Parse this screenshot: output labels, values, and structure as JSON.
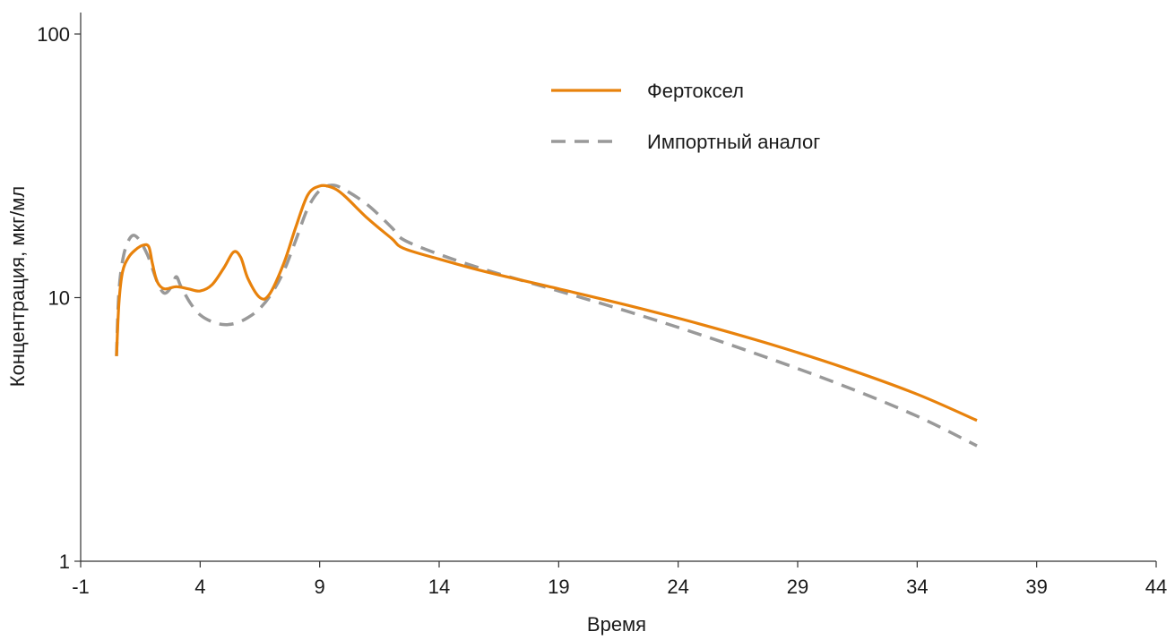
{
  "chart_data": {
    "type": "line",
    "title": "",
    "xlabel": "Время",
    "ylabel": "Концентрация, мкг/мл",
    "xlim": [
      -1,
      44
    ],
    "ylim": [
      1,
      100
    ],
    "yscale": "log",
    "xticks": [
      -1,
      4,
      9,
      14,
      19,
      24,
      29,
      34,
      39,
      44
    ],
    "yticks": [
      1,
      10,
      100
    ],
    "xtick_labels": [
      "-1",
      "4",
      "9",
      "14",
      "19",
      "24",
      "29",
      "34",
      "39",
      "44"
    ],
    "ytick_labels": [
      "1",
      "10",
      "100"
    ],
    "grid": false,
    "legend_position": "top-right",
    "series": [
      {
        "name": "Фертоксел",
        "color": "#e8820c",
        "style": "solid",
        "points": [
          [
            0.5,
            6.0
          ],
          [
            0.6,
            9.5
          ],
          [
            0.75,
            12.5
          ],
          [
            1.0,
            14.2
          ],
          [
            1.3,
            15.2
          ],
          [
            1.6,
            15.8
          ],
          [
            1.85,
            15.6
          ],
          [
            2.0,
            13.5
          ],
          [
            2.2,
            11.5
          ],
          [
            2.5,
            10.8
          ],
          [
            3.0,
            11.0
          ],
          [
            3.5,
            10.8
          ],
          [
            4.0,
            10.6
          ],
          [
            4.5,
            11.2
          ],
          [
            5.0,
            13.0
          ],
          [
            5.4,
            14.9
          ],
          [
            5.7,
            14.2
          ],
          [
            6.0,
            11.8
          ],
          [
            6.5,
            10.0
          ],
          [
            6.9,
            10.3
          ],
          [
            7.5,
            13.5
          ],
          [
            8.0,
            18.5
          ],
          [
            8.5,
            24.5
          ],
          [
            9.0,
            26.5
          ],
          [
            9.5,
            26.2
          ],
          [
            10.0,
            24.5
          ],
          [
            11.0,
            20.0
          ],
          [
            12.0,
            16.8
          ],
          [
            12.5,
            15.4
          ],
          [
            14.0,
            14.0
          ],
          [
            16.0,
            12.5
          ],
          [
            19.0,
            10.8
          ],
          [
            22.0,
            9.3
          ],
          [
            25.0,
            7.9
          ],
          [
            28.0,
            6.6
          ],
          [
            31.0,
            5.4
          ],
          [
            34.0,
            4.3
          ],
          [
            36.5,
            3.42
          ]
        ]
      },
      {
        "name": "Импортный аналог",
        "color": "#999999",
        "style": "dashed",
        "points": [
          [
            0.5,
            6.0
          ],
          [
            0.6,
            10.5
          ],
          [
            0.8,
            14.5
          ],
          [
            1.1,
            17.0
          ],
          [
            1.4,
            16.8
          ],
          [
            1.8,
            14.5
          ],
          [
            2.2,
            11.5
          ],
          [
            2.5,
            10.4
          ],
          [
            2.8,
            11.0
          ],
          [
            3.0,
            12.0
          ],
          [
            3.2,
            11.0
          ],
          [
            3.6,
            9.5
          ],
          [
            4.0,
            8.6
          ],
          [
            4.5,
            8.1
          ],
          [
            5.0,
            7.9
          ],
          [
            5.5,
            8.0
          ],
          [
            6.0,
            8.4
          ],
          [
            6.5,
            9.1
          ],
          [
            7.0,
            10.4
          ],
          [
            7.5,
            12.6
          ],
          [
            8.0,
            16.5
          ],
          [
            8.5,
            21.8
          ],
          [
            9.0,
            25.5
          ],
          [
            9.5,
            26.7
          ],
          [
            10.0,
            25.8
          ],
          [
            11.0,
            22.5
          ],
          [
            12.0,
            18.5
          ],
          [
            12.5,
            16.6
          ],
          [
            14.0,
            14.6
          ],
          [
            16.0,
            12.7
          ],
          [
            19.0,
            10.6
          ],
          [
            22.0,
            8.8
          ],
          [
            25.0,
            7.2
          ],
          [
            28.0,
            5.8
          ],
          [
            31.0,
            4.6
          ],
          [
            34.0,
            3.55
          ],
          [
            36.5,
            2.74
          ]
        ]
      }
    ]
  }
}
